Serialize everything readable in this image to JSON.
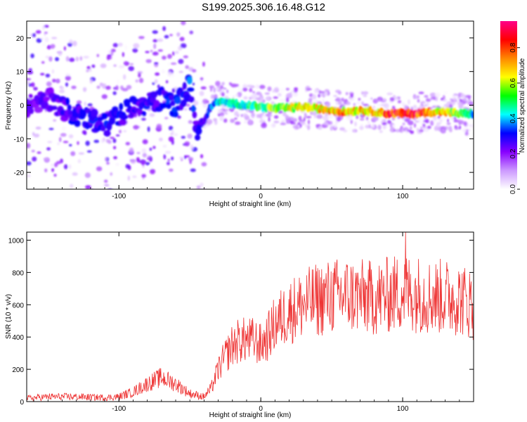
{
  "title": "S199.2025.306.16.48.G12",
  "chart_data": [
    {
      "type": "heatmap",
      "xlabel": "Height of straight line (km)",
      "ylabel": "Frequency (Hz)",
      "xlim": [
        -165,
        150
      ],
      "ylim": [
        -25,
        25
      ],
      "xticks": [
        -100,
        0,
        100
      ],
      "xtick_labels": [
        "-100",
        "0",
        "100"
      ],
      "yticks": [
        20,
        10,
        0,
        -10,
        -20
      ],
      "ytick_labels": [
        "20",
        "10",
        "0",
        "-10",
        "-20"
      ],
      "colorbar": {
        "label": "Normalized spectral amplitude",
        "range": [
          0,
          0.95
        ],
        "ticks": [
          0.0,
          0.2,
          0.4,
          0.6,
          0.8
        ],
        "tick_labels": [
          "0.0",
          "0.2",
          "0.4",
          "0.6",
          "0.8"
        ],
        "colormap": [
          "#ffffff",
          "#cc99ff",
          "#8800ff",
          "#0000ff",
          "#00ffff",
          "#00ff00",
          "#ffff00",
          "#ff8800",
          "#ff0000",
          "#ff0088"
        ]
      },
      "ridge": {
        "x": [
          -165,
          -150,
          -135,
          -120,
          -110,
          -100,
          -90,
          -80,
          -70,
          -60,
          -55,
          -50,
          -45,
          -40,
          -35,
          -30,
          -20,
          -10,
          0,
          10,
          20,
          30,
          40,
          50,
          60,
          70,
          80,
          90,
          100,
          110,
          120,
          130,
          140,
          150
        ],
        "freq": [
          0,
          2,
          -2,
          -4,
          -6,
          -3,
          -1,
          0,
          2,
          0,
          3,
          6,
          -8,
          -5,
          0,
          1,
          0.5,
          0,
          -0.5,
          -1,
          -0.8,
          -0.5,
          -1,
          -1.5,
          -2,
          -1.5,
          -2,
          -2.5,
          -2.5,
          -2.5,
          -2,
          -2,
          -2.5,
          -2.5
        ],
        "amplitude": [
          0.25,
          0.25,
          0.3,
          0.3,
          0.35,
          0.3,
          0.3,
          0.3,
          0.3,
          0.35,
          0.3,
          0.35,
          0.3,
          0.3,
          0.35,
          0.45,
          0.45,
          0.5,
          0.55,
          0.6,
          0.65,
          0.7,
          0.7,
          0.75,
          0.75,
          0.7,
          0.75,
          0.85,
          0.9,
          0.9,
          0.8,
          0.7,
          0.55,
          0.45
        ]
      }
    },
    {
      "type": "line",
      "xlabel": "Height of straight line (km)",
      "ylabel": "SNR (10 * v/v)",
      "xlim": [
        -165,
        150
      ],
      "ylim": [
        0,
        1050
      ],
      "xticks": [
        -100,
        0,
        100
      ],
      "xtick_labels": [
        "-100",
        "0",
        "100"
      ],
      "yticks": [
        0,
        200,
        400,
        600,
        800,
        1000
      ],
      "ytick_labels": [
        "0",
        "200",
        "400",
        "600",
        "800",
        "1000"
      ],
      "series": [
        {
          "name": "SNR",
          "color": "#ee3333",
          "x": [
            -165,
            -150,
            -130,
            -110,
            -100,
            -90,
            -80,
            -70,
            -60,
            -50,
            -40,
            -35,
            -30,
            -25,
            -20,
            -15,
            -10,
            -5,
            0,
            5,
            10,
            15,
            20,
            30,
            40,
            50,
            60,
            70,
            80,
            90,
            100,
            110,
            120,
            130,
            140,
            150
          ],
          "y": [
            20,
            30,
            30,
            25,
            30,
            60,
            110,
            150,
            110,
            50,
            30,
            80,
            200,
            280,
            350,
            380,
            380,
            380,
            350,
            400,
            480,
            520,
            560,
            600,
            630,
            650,
            660,
            650,
            640,
            660,
            680,
            670,
            650,
            650,
            640,
            600
          ]
        }
      ],
      "peak": {
        "x": 102,
        "y": 1050
      }
    }
  ]
}
